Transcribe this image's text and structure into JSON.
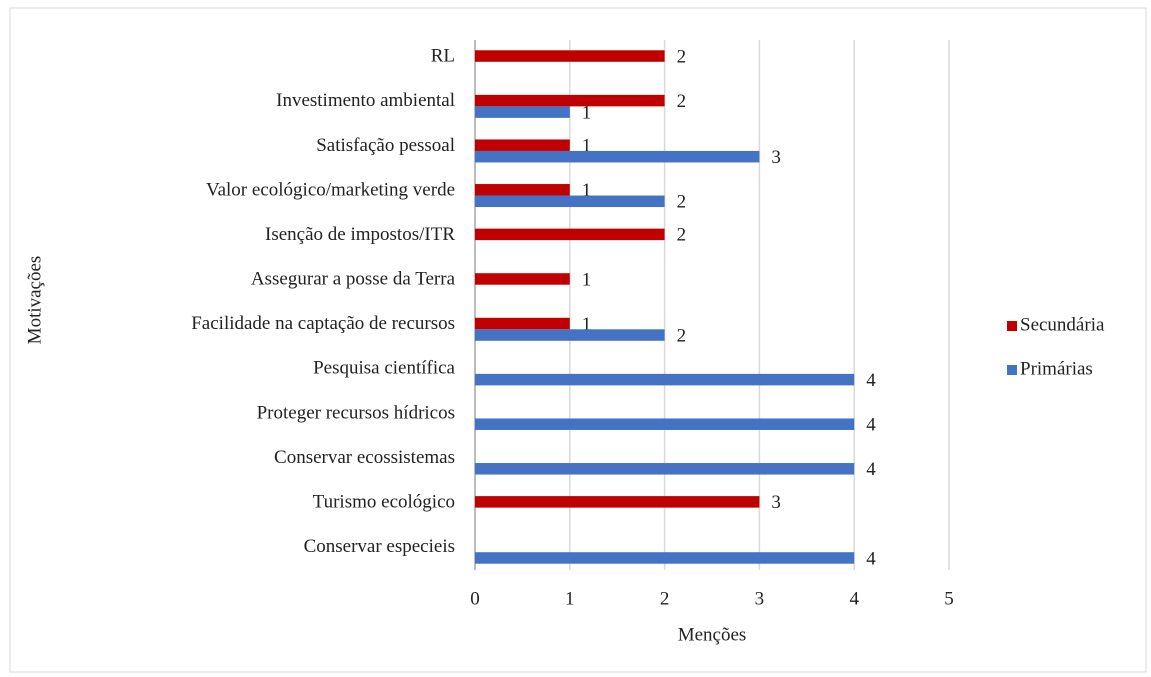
{
  "chart_data": {
    "type": "bar",
    "orientation": "horizontal",
    "xlabel": "Menções",
    "ylabel": "Motivações",
    "categories": [
      "RL",
      "Investimento ambiental",
      "Satisfação pessoal",
      "Valor ecológico/marketing verde",
      "Isenção de impostos/ITR",
      "Assegurar a posse da Terra",
      "Facilidade na captação de recursos",
      "Pesquisa científica",
      "Proteger recursos hídricos",
      "Conservar ecossistemas",
      "Turismo ecológico",
      "Conservar especieis"
    ],
    "series": [
      {
        "name": "Secundária",
        "color": "#c00000",
        "values": [
          2,
          2,
          1,
          1,
          2,
          1,
          1,
          null,
          null,
          null,
          3,
          null
        ]
      },
      {
        "name": "Primárias",
        "color": "#4472c4",
        "values": [
          null,
          1,
          3,
          2,
          null,
          null,
          2,
          4,
          4,
          4,
          null,
          4
        ]
      }
    ],
    "xlim": [
      0,
      5
    ],
    "xticks": [
      0,
      1,
      2,
      3,
      4,
      5
    ],
    "grid": true,
    "legend": "right"
  }
}
